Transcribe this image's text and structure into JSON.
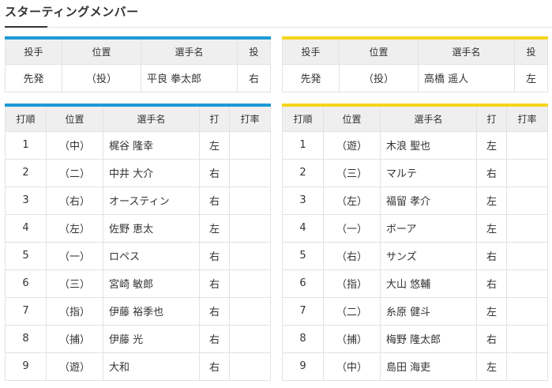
{
  "page_title": "スターティングメンバー",
  "pitcher_headers": [
    "投手",
    "位置",
    "選手名",
    "投"
  ],
  "lineup_headers": [
    "打順",
    "位置",
    "選手名",
    "打",
    "打率"
  ],
  "teams": [
    {
      "accent_color": "#1c9ad6",
      "pitcher": {
        "role": "先発",
        "position": "（投）",
        "name": "平良 拳太郎",
        "throws": "右"
      },
      "lineup": [
        {
          "order": "1",
          "position": "（中）",
          "name": "梶谷 隆幸",
          "bats": "左",
          "avg": ""
        },
        {
          "order": "2",
          "position": "（二）",
          "name": "中井 大介",
          "bats": "右",
          "avg": ""
        },
        {
          "order": "3",
          "position": "（右）",
          "name": "オースティン",
          "bats": "右",
          "avg": ""
        },
        {
          "order": "4",
          "position": "（左）",
          "name": "佐野 恵太",
          "bats": "左",
          "avg": ""
        },
        {
          "order": "5",
          "position": "（一）",
          "name": "ロペス",
          "bats": "右",
          "avg": ""
        },
        {
          "order": "6",
          "position": "（三）",
          "name": "宮崎 敏郎",
          "bats": "右",
          "avg": ""
        },
        {
          "order": "7",
          "position": "（指）",
          "name": "伊藤 裕季也",
          "bats": "右",
          "avg": ""
        },
        {
          "order": "8",
          "position": "（捕）",
          "name": "伊藤 光",
          "bats": "右",
          "avg": ""
        },
        {
          "order": "9",
          "position": "（遊）",
          "name": "大和",
          "bats": "右",
          "avg": ""
        }
      ]
    },
    {
      "accent_color": "#f6d41c",
      "pitcher": {
        "role": "先発",
        "position": "（投）",
        "name": "高橋 遥人",
        "throws": "左"
      },
      "lineup": [
        {
          "order": "1",
          "position": "（遊）",
          "name": "木浪 聖也",
          "bats": "左",
          "avg": ""
        },
        {
          "order": "2",
          "position": "（三）",
          "name": "マルテ",
          "bats": "右",
          "avg": ""
        },
        {
          "order": "3",
          "position": "（左）",
          "name": "福留 孝介",
          "bats": "左",
          "avg": ""
        },
        {
          "order": "4",
          "position": "（一）",
          "name": "ボーア",
          "bats": "左",
          "avg": ""
        },
        {
          "order": "5",
          "position": "（右）",
          "name": "サンズ",
          "bats": "右",
          "avg": ""
        },
        {
          "order": "6",
          "position": "（指）",
          "name": "大山 悠輔",
          "bats": "右",
          "avg": ""
        },
        {
          "order": "7",
          "position": "（二）",
          "name": "糸原 健斗",
          "bats": "左",
          "avg": ""
        },
        {
          "order": "8",
          "position": "（捕）",
          "name": "梅野 隆太郎",
          "bats": "右",
          "avg": ""
        },
        {
          "order": "9",
          "position": "（中）",
          "name": "島田 海吏",
          "bats": "左",
          "avg": ""
        }
      ]
    }
  ]
}
